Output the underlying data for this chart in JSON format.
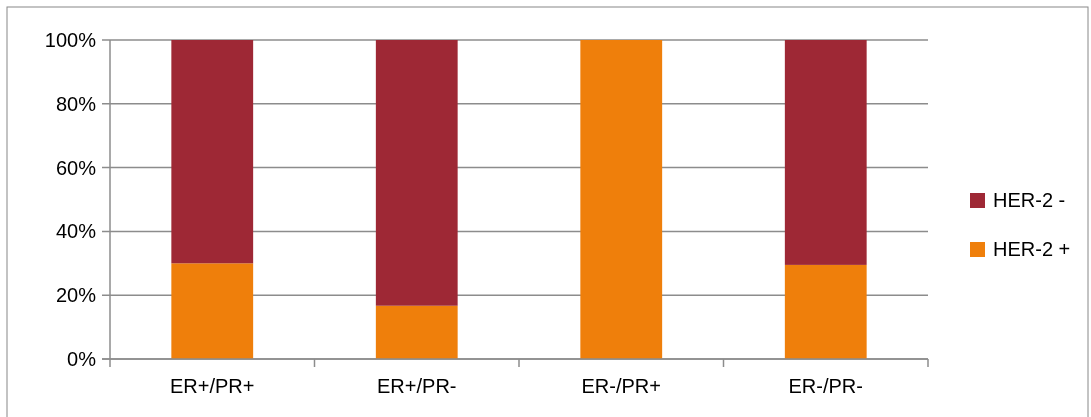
{
  "chart_data": {
    "type": "bar",
    "stacked": true,
    "categories": [
      "ER+/PR+",
      "ER+/PR-",
      "ER-/PR+",
      "ER-/PR-"
    ],
    "series": [
      {
        "name": "HER-2 +",
        "color": "#ef7f0b",
        "values": [
          30,
          16.7,
          100,
          29.5
        ]
      },
      {
        "name": "HER-2 -",
        "color": "#9e2835",
        "values": [
          70,
          83.3,
          0,
          70.5
        ]
      }
    ],
    "ylim": [
      0,
      100
    ],
    "yticks": [
      {
        "value": 0,
        "label": "0%"
      },
      {
        "value": 20,
        "label": "20%"
      },
      {
        "value": 40,
        "label": "40%"
      },
      {
        "value": 60,
        "label": "60%"
      },
      {
        "value": 80,
        "label": "80%"
      },
      {
        "value": 100,
        "label": "100%"
      }
    ],
    "grid": "y",
    "legend": "right"
  }
}
